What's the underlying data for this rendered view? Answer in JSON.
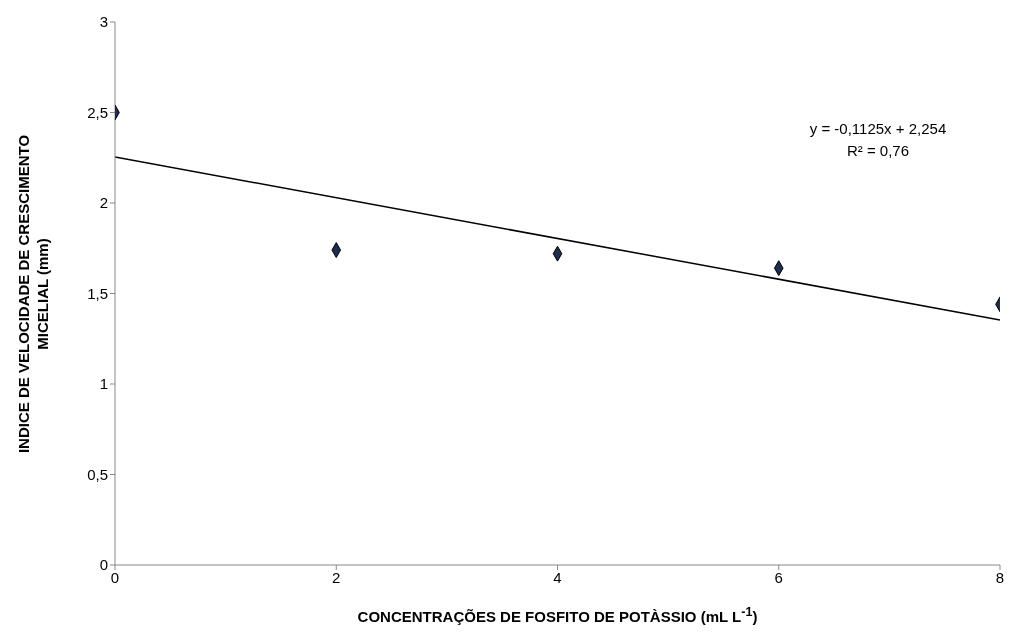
{
  "chart_data": {
    "type": "scatter",
    "xlabel": "CONCENTRAÇÕES DE FOSFITO DE POTÀSSIO (mL L$^{-1}$)",
    "ylabel": "INDICE DE VELOCIDADE DE CRESCIMENTO MICELIAL (mm)",
    "annotations": [
      "y = -0,1125x + 2,254",
      "R² = 0,76"
    ],
    "series": [
      {
        "x": [
          0,
          2,
          4,
          6,
          8
        ],
        "values": [
          2.5,
          1.74,
          1.72,
          1.64,
          1.44
        ],
        "color": "#1f2d4d",
        "marker": "diamond"
      },
      {
        "type": "line",
        "x": [
          0,
          8
        ],
        "values": [
          2.254,
          1.354
        ],
        "color": "#000000",
        "marker": "none",
        "line_style": "solid"
      }
    ],
    "xlim": [
      0,
      8
    ],
    "xticks": [
      0,
      2,
      4,
      6,
      8
    ],
    "ylim": [
      0,
      3
    ],
    "yticks": [
      0,
      {
        "value": 0.5,
        "label": "0,5"
      },
      1,
      {
        "value": 1.5,
        "label": "1,5"
      },
      2,
      {
        "value": 2.5,
        "label": "2,5"
      },
      3
    ],
    "grid": false
  }
}
